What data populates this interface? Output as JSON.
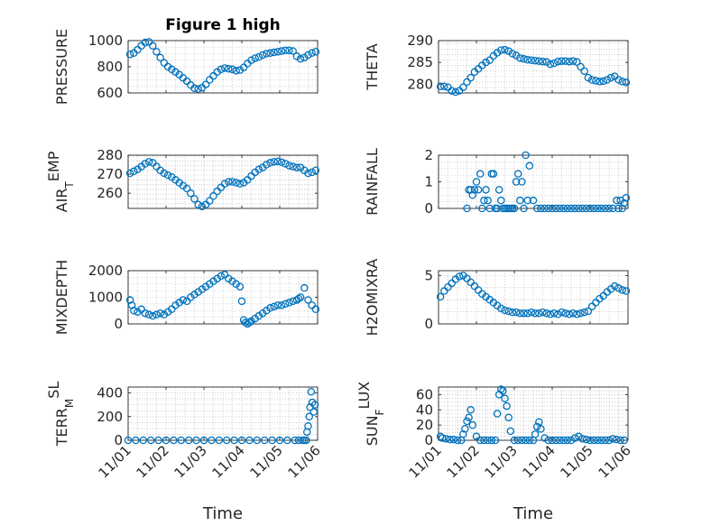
{
  "chart_data": [
    {
      "type": "scatter",
      "title": "Figure 1 high",
      "ylabel": "PRESSURE",
      "xlabel": "",
      "xlim": [
        "11/01",
        "11/06"
      ],
      "ylim": [
        600,
        1000
      ],
      "yticks": [
        "600",
        "800",
        "1000"
      ],
      "x": [
        1.05,
        1.15,
        1.25,
        1.35,
        1.45,
        1.55,
        1.65,
        1.75,
        1.85,
        1.95,
        2.05,
        2.15,
        2.25,
        2.35,
        2.45,
        2.55,
        2.65,
        2.75,
        2.85,
        2.95,
        3.05,
        3.15,
        3.25,
        3.35,
        3.45,
        3.55,
        3.65,
        3.75,
        3.85,
        3.95,
        4.05,
        4.15,
        4.25,
        4.35,
        4.45,
        4.55,
        4.65,
        4.75,
        4.85,
        4.95,
        5.05,
        5.15,
        5.25,
        5.35,
        5.45,
        5.55,
        5.65,
        5.75,
        5.85,
        5.95
      ],
      "y": [
        895,
        905,
        930,
        960,
        985,
        990,
        960,
        915,
        870,
        830,
        800,
        780,
        760,
        740,
        715,
        690,
        660,
        635,
        630,
        640,
        665,
        700,
        730,
        760,
        780,
        790,
        785,
        780,
        770,
        775,
        795,
        825,
        850,
        865,
        875,
        890,
        900,
        905,
        910,
        915,
        920,
        925,
        925,
        920,
        880,
        860,
        870,
        890,
        905,
        915
      ]
    },
    {
      "type": "scatter",
      "title": "",
      "ylabel": "THETA",
      "xlabel": "",
      "xlim": [
        "11/01",
        "11/06"
      ],
      "ylim": [
        278,
        290
      ],
      "yticks": [
        "280",
        "285",
        "290"
      ],
      "x": [
        1.05,
        1.15,
        1.25,
        1.35,
        1.45,
        1.55,
        1.65,
        1.75,
        1.85,
        1.95,
        2.05,
        2.15,
        2.25,
        2.35,
        2.45,
        2.55,
        2.65,
        2.75,
        2.85,
        2.95,
        3.05,
        3.15,
        3.25,
        3.35,
        3.45,
        3.55,
        3.65,
        3.75,
        3.85,
        3.95,
        4.05,
        4.15,
        4.25,
        4.35,
        4.45,
        4.55,
        4.65,
        4.75,
        4.85,
        4.95,
        5.05,
        5.15,
        5.25,
        5.35,
        5.45,
        5.55,
        5.65,
        5.75,
        5.85,
        5.95
      ],
      "y": [
        279.5,
        279.5,
        279.3,
        278.5,
        278.2,
        278.5,
        279.3,
        280.5,
        281.5,
        282.8,
        283.5,
        284.3,
        285,
        285.5,
        286.5,
        287.2,
        287.8,
        287.9,
        287.6,
        287,
        286.6,
        286,
        285.8,
        285.6,
        285.5,
        285.4,
        285.3,
        285.2,
        285.1,
        284.6,
        284.8,
        285.2,
        285.3,
        285.3,
        285.2,
        285.3,
        285.1,
        284,
        283,
        281.5,
        281,
        280.8,
        280.6,
        280.7,
        281,
        281.5,
        281.8,
        281,
        280.6,
        280.4
      ]
    },
    {
      "type": "scatter",
      "title": "",
      "ylabel": "AIR_TEMP",
      "xlabel": "",
      "xlim": [
        "11/01",
        "11/06"
      ],
      "ylim": [
        252,
        280
      ],
      "yticks": [
        "260",
        "270",
        "280"
      ],
      "x": [
        1.05,
        1.15,
        1.25,
        1.35,
        1.45,
        1.55,
        1.65,
        1.75,
        1.85,
        1.95,
        2.05,
        2.15,
        2.25,
        2.35,
        2.45,
        2.55,
        2.65,
        2.75,
        2.85,
        2.95,
        3.05,
        3.15,
        3.25,
        3.35,
        3.45,
        3.55,
        3.65,
        3.75,
        3.85,
        3.95,
        4.05,
        4.15,
        4.25,
        4.35,
        4.45,
        4.55,
        4.65,
        4.75,
        4.85,
        4.95,
        5.05,
        5.15,
        5.25,
        5.35,
        5.45,
        5.55,
        5.65,
        5.75,
        5.85,
        5.95
      ],
      "y": [
        270.5,
        271.5,
        272.5,
        274,
        275.5,
        276.5,
        276,
        274,
        272,
        270.5,
        269.5,
        268.5,
        267,
        265.5,
        264,
        262.5,
        260,
        257,
        254,
        253,
        254,
        256,
        258.5,
        261,
        263,
        265,
        266,
        266,
        265.5,
        265,
        265.5,
        267,
        269,
        271,
        272.5,
        273.5,
        275,
        276,
        276.5,
        276.7,
        276.3,
        275.5,
        274.5,
        274,
        273.5,
        273.5,
        272,
        270.5,
        271,
        272
      ]
    },
    {
      "type": "scatter",
      "title": "",
      "ylabel": "RAINFALL",
      "xlabel": "",
      "xlim": [
        "11/01",
        "11/06"
      ],
      "ylim": [
        0,
        2
      ],
      "yticks": [
        "0",
        "1",
        "2"
      ],
      "x": [
        1.75,
        1.8,
        1.85,
        1.9,
        1.95,
        2.0,
        2.05,
        2.1,
        2.15,
        2.2,
        2.25,
        2.3,
        2.35,
        2.4,
        2.45,
        2.5,
        2.55,
        2.6,
        2.65,
        2.7,
        2.75,
        2.8,
        2.85,
        2.9,
        2.95,
        3.0,
        3.05,
        3.1,
        3.15,
        3.2,
        3.25,
        3.3,
        3.35,
        3.4,
        3.5,
        3.6,
        3.7,
        3.8,
        3.9,
        4.0,
        4.1,
        4.2,
        4.3,
        4.4,
        4.5,
        4.6,
        4.7,
        4.8,
        4.9,
        5.0,
        5.1,
        5.2,
        5.3,
        5.4,
        5.5,
        5.6,
        5.7,
        5.75,
        5.8,
        5.85,
        5.9,
        5.95
      ],
      "y": [
        0,
        0.7,
        0.7,
        0.5,
        0.7,
        1.0,
        0.7,
        1.3,
        0,
        0.3,
        0.7,
        0.3,
        0,
        1.3,
        1.3,
        0,
        0,
        0.7,
        0.3,
        0,
        0,
        0,
        0,
        0,
        0,
        0,
        1.0,
        1.3,
        0.3,
        1.0,
        0,
        2.0,
        0.3,
        1.6,
        0.3,
        0,
        0,
        0,
        0,
        0,
        0,
        0,
        0,
        0,
        0,
        0,
        0,
        0,
        0,
        0,
        0,
        0,
        0,
        0,
        0,
        0,
        0.3,
        0,
        0.3,
        0,
        0.2,
        0.4
      ]
    },
    {
      "type": "scatter",
      "title": "",
      "ylabel": "MIXDEPTH",
      "xlabel": "",
      "xlim": [
        "11/01",
        "11/06"
      ],
      "ylim": [
        0,
        2000
      ],
      "yticks": [
        "0",
        "1000",
        "2000"
      ],
      "x": [
        1.05,
        1.1,
        1.15,
        1.25,
        1.35,
        1.45,
        1.55,
        1.65,
        1.75,
        1.85,
        1.95,
        2.05,
        2.15,
        2.25,
        2.35,
        2.45,
        2.55,
        2.65,
        2.75,
        2.85,
        2.95,
        3.05,
        3.15,
        3.25,
        3.35,
        3.45,
        3.55,
        3.65,
        3.75,
        3.85,
        3.95,
        4.0,
        4.05,
        4.1,
        4.15,
        4.2,
        4.25,
        4.35,
        4.45,
        4.55,
        4.65,
        4.75,
        4.85,
        4.95,
        5.05,
        5.15,
        5.25,
        5.35,
        5.45,
        5.5,
        5.55,
        5.65,
        5.75,
        5.85,
        5.95
      ],
      "y": [
        900,
        700,
        500,
        450,
        550,
        400,
        350,
        300,
        350,
        400,
        350,
        450,
        550,
        700,
        800,
        900,
        850,
        1000,
        1100,
        1200,
        1300,
        1400,
        1500,
        1600,
        1700,
        1800,
        1850,
        1700,
        1600,
        1500,
        1400,
        850,
        150,
        50,
        0,
        50,
        100,
        200,
        300,
        400,
        500,
        600,
        650,
        700,
        700,
        750,
        800,
        850,
        900,
        950,
        1000,
        1350,
        900,
        700,
        550
      ]
    },
    {
      "type": "scatter",
      "title": "",
      "ylabel": "H2OMIXRA",
      "xlabel": "",
      "xlim": [
        "11/01",
        "11/06"
      ],
      "ylim": [
        0,
        5.5
      ],
      "yticks": [
        "0",
        "5"
      ],
      "x": [
        1.05,
        1.15,
        1.25,
        1.35,
        1.45,
        1.55,
        1.65,
        1.75,
        1.85,
        1.95,
        2.05,
        2.15,
        2.25,
        2.35,
        2.45,
        2.55,
        2.65,
        2.75,
        2.85,
        2.95,
        3.05,
        3.15,
        3.25,
        3.35,
        3.45,
        3.55,
        3.65,
        3.75,
        3.85,
        3.95,
        4.05,
        4.15,
        4.25,
        4.35,
        4.45,
        4.55,
        4.65,
        4.75,
        4.85,
        4.95,
        5.05,
        5.15,
        5.25,
        5.35,
        5.45,
        5.55,
        5.65,
        5.75,
        5.85,
        5.95
      ],
      "y": [
        2.8,
        3.4,
        3.8,
        4.2,
        4.6,
        4.9,
        5.0,
        4.7,
        4.3,
        3.9,
        3.5,
        3.1,
        2.8,
        2.5,
        2.2,
        1.9,
        1.6,
        1.4,
        1.3,
        1.2,
        1.2,
        1.1,
        1.1,
        1.1,
        1.2,
        1.1,
        1.1,
        1.2,
        1.1,
        1.0,
        1.1,
        1.0,
        1.2,
        1.1,
        1.0,
        1.1,
        1.0,
        1.1,
        1.2,
        1.3,
        1.8,
        2.2,
        2.6,
        2.9,
        3.3,
        3.6,
        3.9,
        3.7,
        3.5,
        3.4
      ]
    },
    {
      "type": "scatter",
      "title": "",
      "ylabel": "TERR_MSL",
      "xlabel": "Time",
      "xlim": [
        "11/01",
        "11/06"
      ],
      "ylim": [
        0,
        450
      ],
      "yticks": [
        "0",
        "200",
        "400"
      ],
      "xticks": [
        "11/01",
        "11/02",
        "11/03",
        "11/04",
        "11/05",
        "11/06"
      ],
      "x": [
        1.0,
        1.2,
        1.4,
        1.6,
        1.8,
        2.0,
        2.2,
        2.4,
        2.6,
        2.8,
        3.0,
        3.2,
        3.4,
        3.6,
        3.8,
        4.0,
        4.2,
        4.4,
        4.6,
        4.8,
        5.0,
        5.2,
        5.4,
        5.5,
        5.6,
        5.65,
        5.7,
        5.72,
        5.75,
        5.78,
        5.8,
        5.83,
        5.86,
        5.9,
        5.93
      ],
      "y": [
        0,
        0,
        0,
        0,
        0,
        0,
        0,
        0,
        0,
        0,
        0,
        0,
        0,
        0,
        0,
        0,
        0,
        0,
        0,
        0,
        0,
        0,
        0,
        0,
        0,
        0,
        0,
        70,
        120,
        200,
        280,
        410,
        320,
        240,
        300
      ]
    },
    {
      "type": "scatter",
      "title": "",
      "ylabel": "SUN_FLUX",
      "xlabel": "Time",
      "xlim": [
        "11/01",
        "11/06"
      ],
      "ylim": [
        0,
        70
      ],
      "yticks": [
        "0",
        "20",
        "40",
        "60"
      ],
      "xticks": [
        "11/01",
        "11/02",
        "11/03",
        "11/04",
        "11/05",
        "11/06"
      ],
      "x": [
        1.05,
        1.1,
        1.2,
        1.3,
        1.4,
        1.5,
        1.6,
        1.65,
        1.7,
        1.75,
        1.8,
        1.85,
        1.9,
        2.0,
        2.1,
        2.2,
        2.3,
        2.4,
        2.5,
        2.55,
        2.6,
        2.65,
        2.7,
        2.75,
        2.8,
        2.85,
        2.9,
        3.0,
        3.1,
        3.2,
        3.3,
        3.4,
        3.5,
        3.55,
        3.6,
        3.65,
        3.7,
        3.8,
        3.9,
        4.0,
        4.1,
        4.2,
        4.3,
        4.4,
        4.5,
        4.6,
        4.7,
        4.8,
        4.9,
        5.0,
        5.1,
        5.2,
        5.3,
        5.4,
        5.5,
        5.6,
        5.7,
        5.8,
        5.9
      ],
      "y": [
        5,
        3,
        2,
        1,
        1,
        0,
        0,
        8,
        15,
        25,
        30,
        40,
        20,
        5,
        0,
        0,
        0,
        0,
        0,
        35,
        60,
        67,
        65,
        55,
        45,
        30,
        12,
        0,
        0,
        0,
        0,
        0,
        0,
        8,
        18,
        24,
        15,
        3,
        0,
        0,
        0,
        0,
        0,
        0,
        0,
        3,
        5,
        2,
        1,
        0,
        0,
        0,
        0,
        0,
        0,
        2,
        1,
        0,
        0
      ]
    }
  ]
}
